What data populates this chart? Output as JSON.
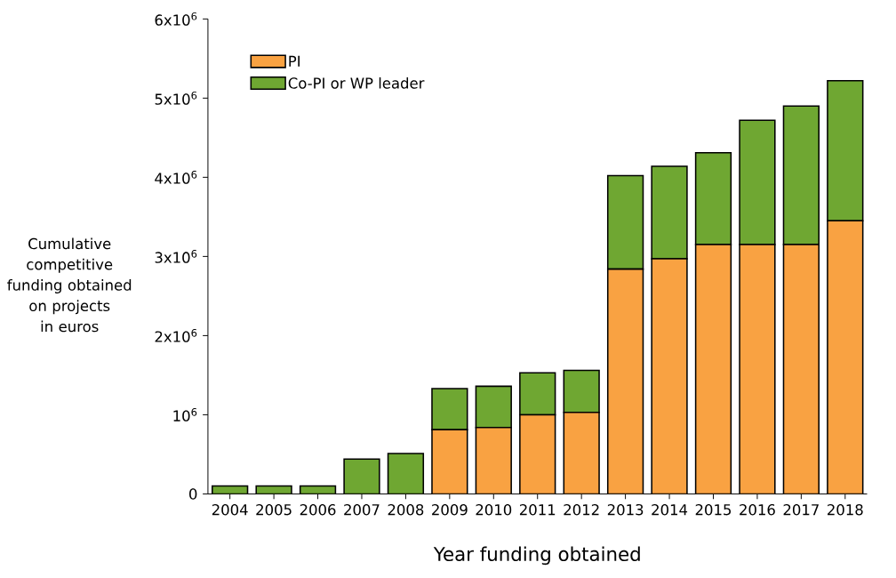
{
  "chart_data": {
    "type": "bar",
    "stacked": true,
    "xlabel": "Year funding obtained",
    "ylabel": "Cumulative competitive funding obtained on projects in euros",
    "categories": [
      "2004",
      "2005",
      "2006",
      "2007",
      "2008",
      "2009",
      "2010",
      "2011",
      "2012",
      "2013",
      "2014",
      "2015",
      "2016",
      "2017",
      "2018"
    ],
    "series": [
      {
        "name": "PI",
        "color": "#f9a242",
        "values": [
          0,
          0,
          0,
          0,
          0,
          810000,
          840000,
          1000000,
          1030000,
          2840000,
          2970000,
          3150000,
          3150000,
          3150000,
          3450000
        ]
      },
      {
        "name": "Co-PI or WP leader",
        "color": "#6fa732",
        "values": [
          100000,
          100000,
          100000,
          440000,
          510000,
          520000,
          520000,
          530000,
          530000,
          1180000,
          1170000,
          1160000,
          1570000,
          1750000,
          1770000
        ]
      }
    ],
    "ylim": [
      0,
      6000000
    ],
    "yticks": [
      {
        "value": 0,
        "label": "0"
      },
      {
        "value": 1000000,
        "label": "10$^{6}$"
      },
      {
        "value": 2000000,
        "label": "2x10$^{6}$"
      },
      {
        "value": 3000000,
        "label": "3x10$^{6}$"
      },
      {
        "value": 4000000,
        "label": "4x10$^{6}$"
      },
      {
        "value": 5000000,
        "label": "5x10$^{6}$"
      },
      {
        "value": 6000000,
        "label": "6x10$^{6}$"
      }
    ],
    "legend": "top left",
    "grid": false
  }
}
